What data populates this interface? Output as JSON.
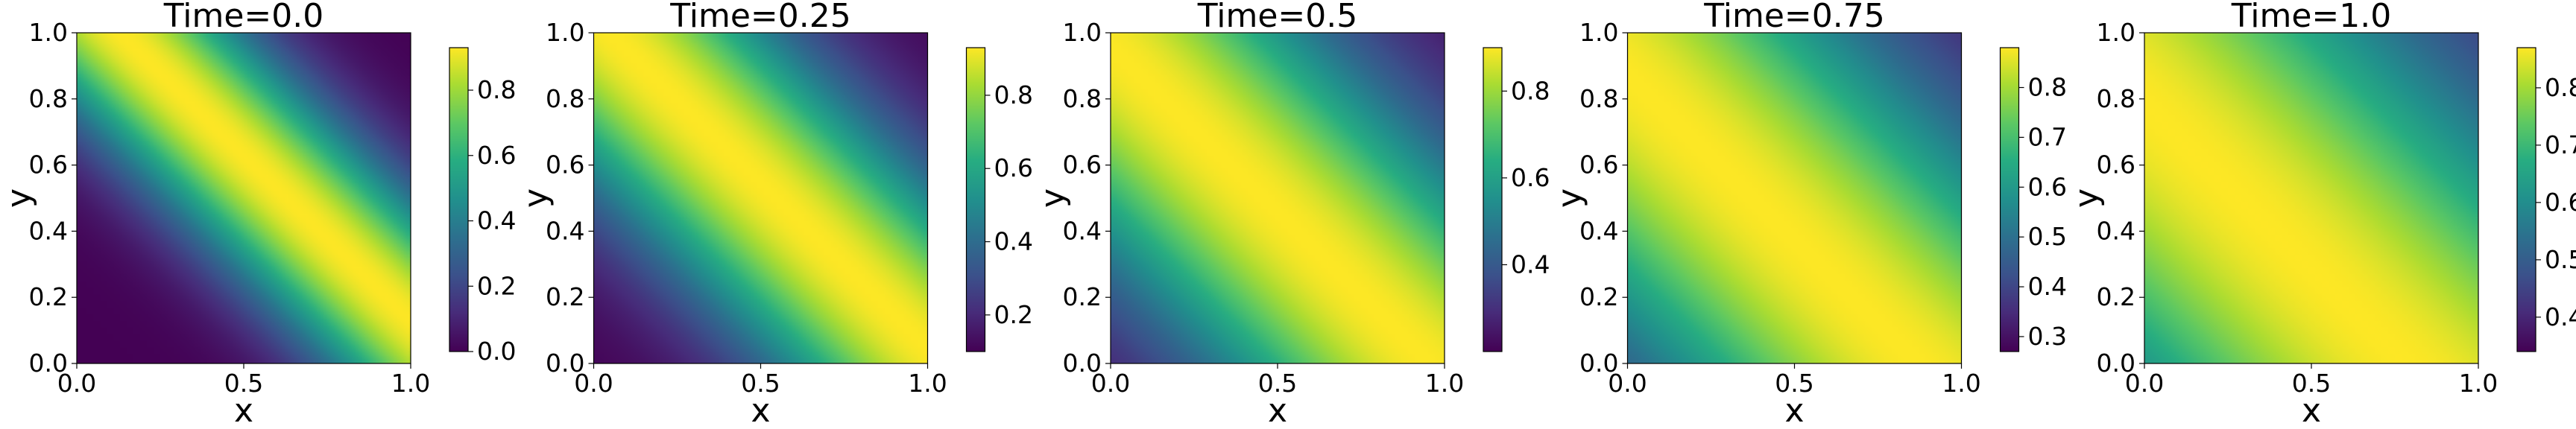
{
  "chart_data": [
    {
      "type": "heatmap",
      "title": "Time=0.0",
      "xlabel": "x",
      "ylabel": "y",
      "xlim": [
        0.0,
        1.0
      ],
      "ylim": [
        0.0,
        1.0
      ],
      "xticks": [
        "0.0",
        "0.5",
        "1.0"
      ],
      "yticks": [
        "0.0",
        "0.2",
        "0.4",
        "0.6",
        "0.8",
        "1.0"
      ],
      "colormap": "viridis",
      "colorbar": {
        "min": 0.0,
        "max": 0.93,
        "ticks": [
          "0.0",
          "0.2",
          "0.4",
          "0.6",
          "0.8"
        ]
      },
      "field": {
        "ridge": 0.6,
        "spread": 0.19,
        "shift": -0.05,
        "floor": 0.0
      }
    },
    {
      "type": "heatmap",
      "title": "Time=0.25",
      "xlabel": "x",
      "ylabel": "y",
      "xlim": [
        0.0,
        1.0
      ],
      "ylim": [
        0.0,
        1.0
      ],
      "xticks": [
        "0.0",
        "0.5",
        "1.0"
      ],
      "yticks": [
        "0.0",
        "0.2",
        "0.4",
        "0.6",
        "0.8",
        "1.0"
      ],
      "colormap": "viridis",
      "colorbar": {
        "min": 0.1,
        "max": 0.93,
        "ticks": [
          "0.2",
          "0.4",
          "0.6",
          "0.8"
        ]
      },
      "field": {
        "ridge": 0.55,
        "spread": 0.26,
        "shift": -0.04,
        "floor": 0.1
      }
    },
    {
      "type": "heatmap",
      "title": "Time=0.5",
      "xlabel": "x",
      "ylabel": "y",
      "xlim": [
        0.0,
        1.0
      ],
      "ylim": [
        0.0,
        1.0
      ],
      "xticks": [
        "0.0",
        "0.5",
        "1.0"
      ],
      "yticks": [
        "0.0",
        "0.2",
        "0.4",
        "0.6",
        "0.8",
        "1.0"
      ],
      "colormap": "viridis",
      "colorbar": {
        "min": 0.2,
        "max": 0.9,
        "ticks": [
          "0.4",
          "0.6",
          "0.8"
        ]
      },
      "field": {
        "ridge": 0.5,
        "spread": 0.34,
        "shift": -0.03,
        "floor": 0.2
      }
    },
    {
      "type": "heatmap",
      "title": "Time=0.75",
      "xlabel": "x",
      "ylabel": "y",
      "xlim": [
        0.0,
        1.0
      ],
      "ylim": [
        0.0,
        1.0
      ],
      "xticks": [
        "0.0",
        "0.5",
        "1.0"
      ],
      "yticks": [
        "0.0",
        "0.2",
        "0.4",
        "0.6",
        "0.8",
        "1.0"
      ],
      "colormap": "viridis",
      "colorbar": {
        "min": 0.27,
        "max": 0.88,
        "ticks": [
          "0.3",
          "0.4",
          "0.5",
          "0.6",
          "0.7",
          "0.8"
        ]
      },
      "field": {
        "ridge": 0.45,
        "spread": 0.42,
        "shift": -0.02,
        "floor": 0.27
      }
    },
    {
      "type": "heatmap",
      "title": "Time=1.0",
      "xlabel": "x",
      "ylabel": "y",
      "xlim": [
        0.0,
        1.0
      ],
      "ylim": [
        0.0,
        1.0
      ],
      "xticks": [
        "0.0",
        "0.5",
        "1.0"
      ],
      "yticks": [
        "0.0",
        "0.2",
        "0.4",
        "0.6",
        "0.8",
        "1.0"
      ],
      "colormap": "viridis",
      "colorbar": {
        "min": 0.34,
        "max": 0.87,
        "ticks": [
          "0.4",
          "0.5",
          "0.6",
          "0.7",
          "0.8"
        ]
      },
      "field": {
        "ridge": 0.4,
        "spread": 0.5,
        "shift": -0.01,
        "floor": 0.34
      }
    }
  ]
}
